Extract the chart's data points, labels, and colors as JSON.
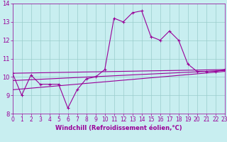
{
  "title": "",
  "xlabel": "Windchill (Refroidissement éolien,°C)",
  "ylabel": "",
  "xlim": [
    0,
    23
  ],
  "ylim": [
    8,
    14
  ],
  "yticks": [
    8,
    9,
    10,
    11,
    12,
    13,
    14
  ],
  "xticks": [
    0,
    1,
    2,
    3,
    4,
    5,
    6,
    7,
    8,
    9,
    10,
    11,
    12,
    13,
    14,
    15,
    16,
    17,
    18,
    19,
    20,
    21,
    22,
    23
  ],
  "bg_color": "#c8eef0",
  "grid_color": "#99cccc",
  "line_color": "#990099",
  "line1_x": [
    0,
    1,
    2,
    3,
    4,
    5,
    6,
    7,
    8,
    9,
    10,
    11,
    12,
    13,
    14,
    15,
    16,
    17,
    18,
    19,
    20,
    21,
    22,
    23
  ],
  "line1_y": [
    10.2,
    9.0,
    10.1,
    9.6,
    9.6,
    9.6,
    8.3,
    9.3,
    9.9,
    10.0,
    10.4,
    13.2,
    13.0,
    13.5,
    13.6,
    12.2,
    12.0,
    12.5,
    12.0,
    10.7,
    10.3,
    10.3,
    10.3,
    10.4
  ],
  "line2_x": [
    0,
    23
  ],
  "line2_y": [
    10.2,
    10.4
  ],
  "line3_x": [
    0,
    23
  ],
  "line3_y": [
    9.8,
    10.35
  ],
  "line4_x": [
    0,
    23
  ],
  "line4_y": [
    9.3,
    10.3
  ],
  "markersize": 2.0,
  "linewidth": 0.8,
  "fontsize_xlabel": 6,
  "fontsize_ticks": 5.5
}
